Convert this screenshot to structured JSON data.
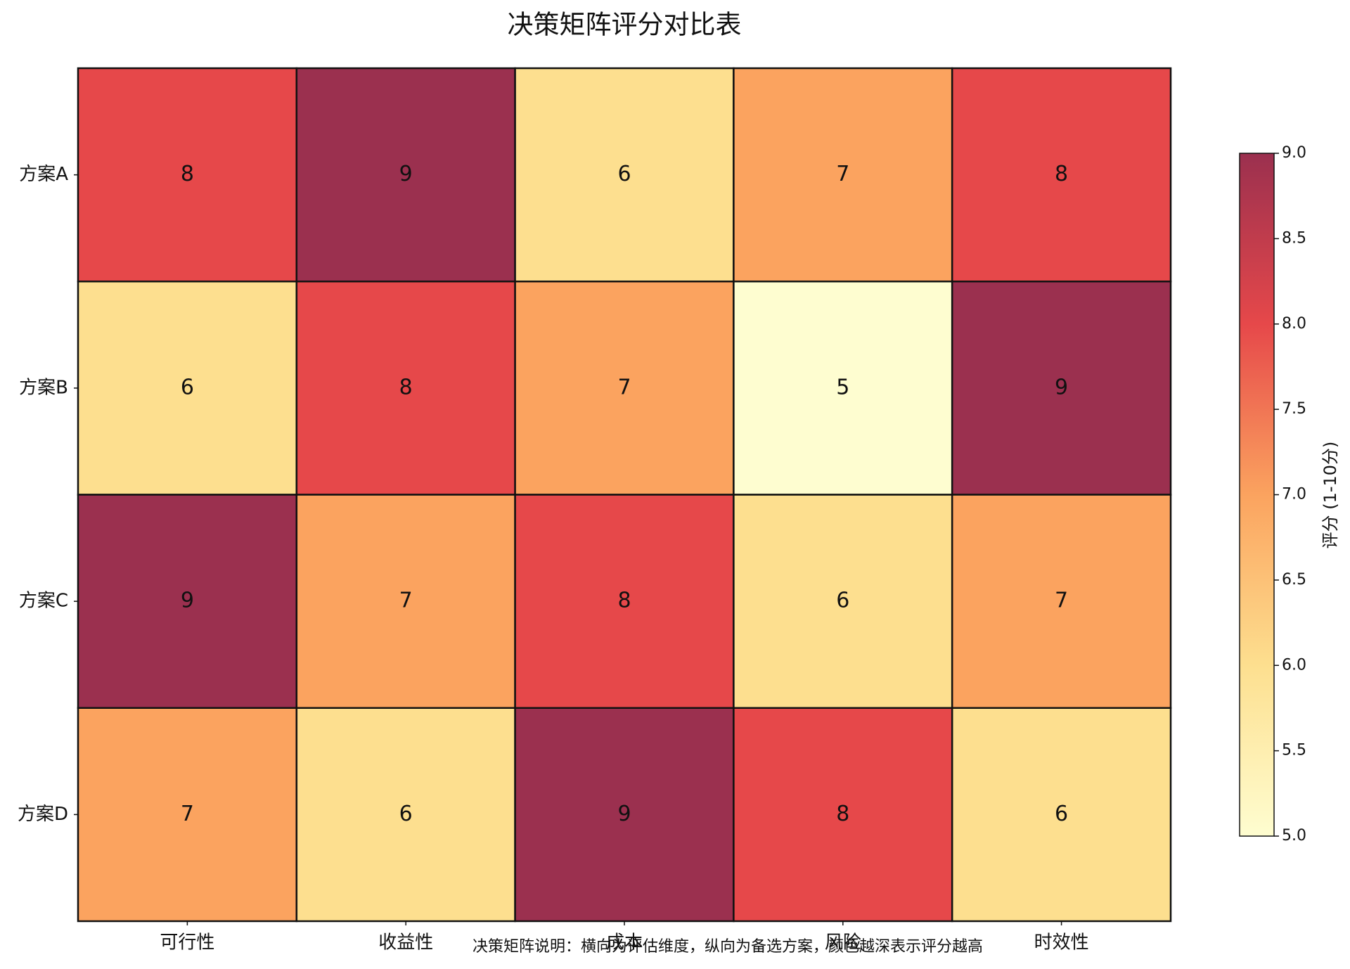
{
  "chart_data": {
    "type": "heatmap",
    "title": "决策矩阵评分对比表",
    "x_categories": [
      "可行性",
      "收益性",
      "成本",
      "风险",
      "时效性"
    ],
    "y_categories": [
      "方案A",
      "方案B",
      "方案C",
      "方案D"
    ],
    "values": [
      [
        8,
        9,
        6,
        7,
        8
      ],
      [
        6,
        8,
        7,
        5,
        9
      ],
      [
        9,
        7,
        8,
        6,
        7
      ],
      [
        7,
        6,
        9,
        8,
        6
      ]
    ],
    "colormap": [
      "#fefdd0",
      "#fddf8f",
      "#fba35f",
      "#e6484a",
      "#9b304f"
    ],
    "zlim": [
      5,
      9
    ],
    "colorbar_label": "评分 (1-10分)",
    "colorbar_ticks": [
      {
        "value": 5,
        "label": "5.0"
      },
      {
        "value": 5.5,
        "label": "5.5"
      },
      {
        "value": 6,
        "label": "6.0"
      },
      {
        "value": 6.5,
        "label": "6.5"
      },
      {
        "value": 7,
        "label": "7.0"
      },
      {
        "value": 7.5,
        "label": "7.5"
      },
      {
        "value": 8,
        "label": "8.0"
      },
      {
        "value": 8.5,
        "label": "8.5"
      },
      {
        "value": 9,
        "label": "9.0"
      }
    ],
    "note": "决策矩阵说明：横向为评估维度，纵向为备选方案，颜色越深表示评分越高"
  }
}
